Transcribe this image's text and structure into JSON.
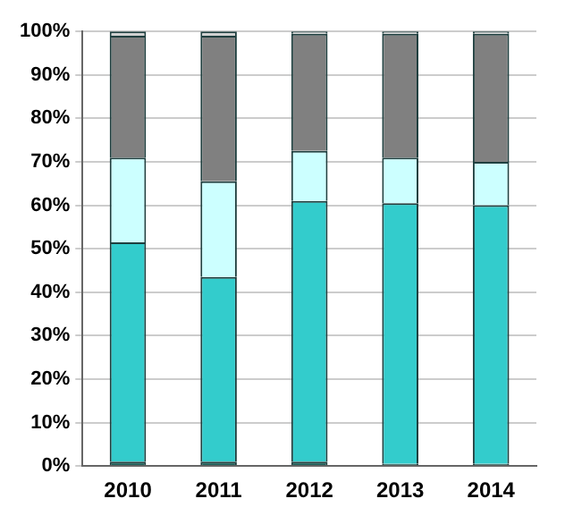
{
  "chart_data": {
    "type": "bar",
    "stacked": true,
    "categories": [
      "2010",
      "2011",
      "2012",
      "2013",
      "2014"
    ],
    "series": [
      {
        "color": "#1a5c57",
        "values": [
          1,
          1,
          1,
          0.5,
          0.5
        ]
      },
      {
        "color": "#33cccc",
        "values": [
          50.5,
          42.5,
          60,
          60,
          59.5
        ]
      },
      {
        "color": "#ccffff",
        "values": [
          19.5,
          22,
          11.5,
          10.5,
          10
        ]
      },
      {
        "color": "#808080",
        "values": [
          28,
          33.5,
          27,
          28.5,
          29.5
        ]
      },
      {
        "color": "#d0d0d0",
        "values": [
          1,
          1,
          0.5,
          0.5,
          0.5
        ]
      }
    ],
    "ylim": [
      0,
      100
    ],
    "yticks": [
      {
        "value": 0,
        "label": "0%"
      },
      {
        "value": 10,
        "label": "10%"
      },
      {
        "value": 20,
        "label": "20%"
      },
      {
        "value": 30,
        "label": "30%"
      },
      {
        "value": 40,
        "label": "40%"
      },
      {
        "value": 50,
        "label": "50%"
      },
      {
        "value": 60,
        "label": "60%"
      },
      {
        "value": 70,
        "label": "70%"
      },
      {
        "value": 80,
        "label": "80%"
      },
      {
        "value": 90,
        "label": "90%"
      },
      {
        "value": 100,
        "label": "100%"
      }
    ],
    "grid": "y",
    "legend": false
  }
}
